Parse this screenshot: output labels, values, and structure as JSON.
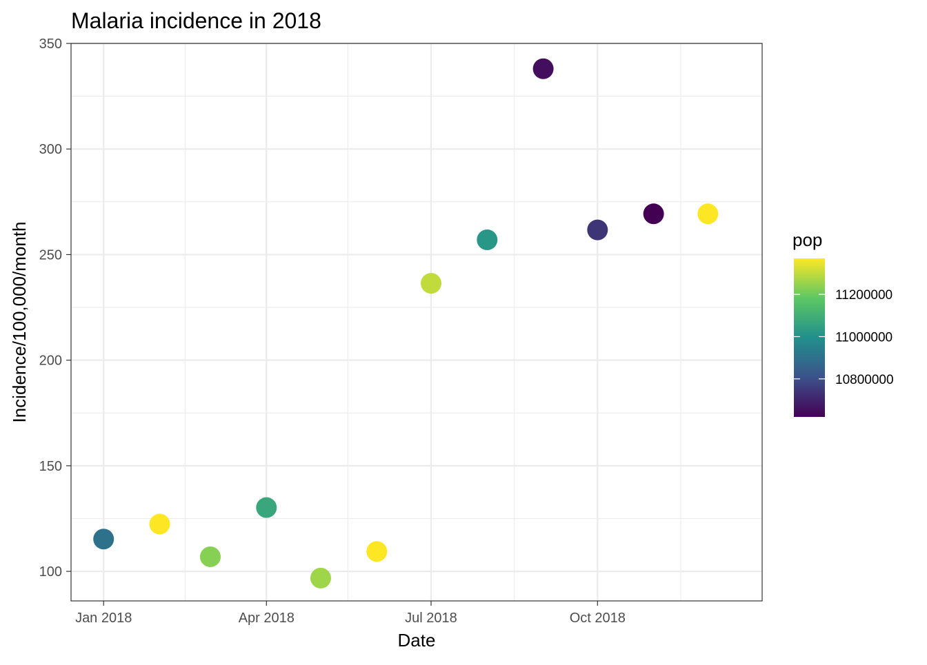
{
  "chart_data": {
    "type": "scatter",
    "title": "Malaria incidence in 2018",
    "xlabel": "Date",
    "ylabel": "Incidence/100,000/month",
    "x_axis_type": "date",
    "xlim": [
      "2017-12-14",
      "2018-12-31"
    ],
    "ylim": [
      86,
      350
    ],
    "x_ticks": [
      {
        "value": "2018-01-01",
        "label": "Jan 2018"
      },
      {
        "value": "2018-04-01",
        "label": "Apr 2018"
      },
      {
        "value": "2018-07-01",
        "label": "Jul 2018"
      },
      {
        "value": "2018-10-01",
        "label": "Oct 2018"
      }
    ],
    "x_minor_ticks": [
      "2018-02-15",
      "2018-05-16",
      "2018-08-16",
      "2018-11-16"
    ],
    "y_ticks": [
      100,
      150,
      200,
      250,
      300,
      350
    ],
    "y_minor_ticks": [
      125,
      175,
      225,
      275,
      325
    ],
    "grid": true,
    "theme": "bw",
    "legend": {
      "title": "pop",
      "type": "colorbar",
      "position": "right",
      "range": [
        10620000,
        11370000
      ],
      "ticks": [
        10800000,
        11000000,
        11200000
      ],
      "tick_labels": [
        "10800000",
        "11000000",
        "11200000"
      ],
      "palette": "viridis",
      "colors": [
        "#440154",
        "#3b528b",
        "#21908c",
        "#5dc863",
        "#fde725"
      ]
    },
    "series": [
      {
        "points": [
          {
            "x": "2018-01-01",
            "y": 115.3,
            "pop": 10900000
          },
          {
            "x": "2018-02-01",
            "y": 122.4,
            "pop": 11370000
          },
          {
            "x": "2018-03-01",
            "y": 106.9,
            "pop": 11230000
          },
          {
            "x": "2018-04-01",
            "y": 130.2,
            "pop": 11070000
          },
          {
            "x": "2018-05-01",
            "y": 96.8,
            "pop": 11260000
          },
          {
            "x": "2018-06-01",
            "y": 109.4,
            "pop": 11370000
          },
          {
            "x": "2018-07-01",
            "y": 236.4,
            "pop": 11300000
          },
          {
            "x": "2018-08-01",
            "y": 257.0,
            "pop": 11020000
          },
          {
            "x": "2018-09-01",
            "y": 338.0,
            "pop": 10650000
          },
          {
            "x": "2018-10-01",
            "y": 261.7,
            "pop": 10740000
          },
          {
            "x": "2018-11-01",
            "y": 269.3,
            "pop": 10620000
          },
          {
            "x": "2018-12-01",
            "y": 269.3,
            "pop": 11370000
          }
        ]
      }
    ]
  }
}
